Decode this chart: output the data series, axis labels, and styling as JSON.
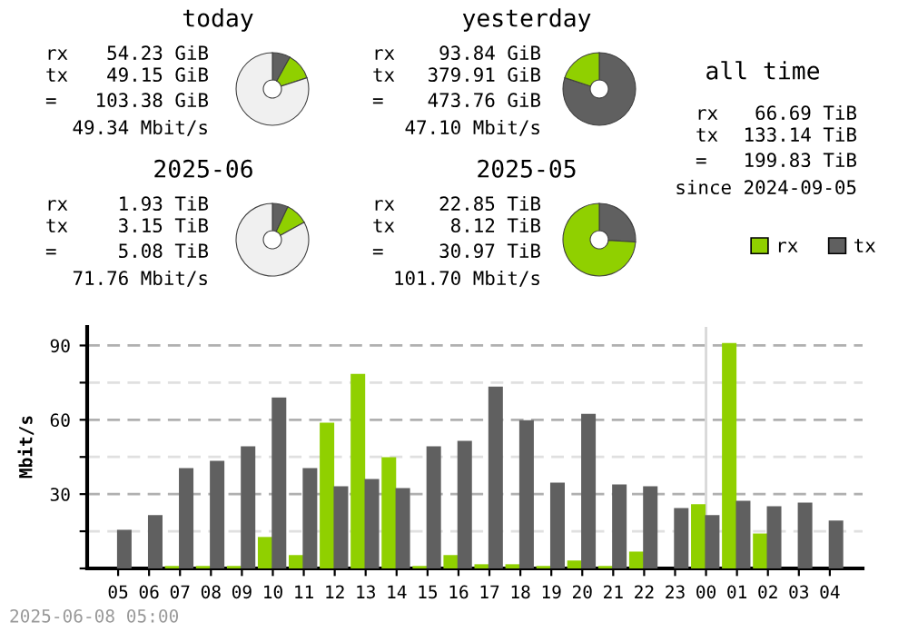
{
  "chart_data": [
    {
      "type": "donut",
      "title": "today",
      "categories": [
        null,
        null,
        null
      ],
      "values": [
        8,
        12,
        80
      ],
      "colors": [
        "#606060",
        "#90d000",
        "#f0f0f0"
      ],
      "annotations": [
        "rx 54.23 GiB",
        "tx 49.15 GiB",
        "= 103.38 GiB",
        "49.34 Mbit/s"
      ]
    },
    {
      "type": "donut",
      "title": "yesterday",
      "categories": [
        null,
        null
      ],
      "values": [
        80,
        20
      ],
      "colors": [
        "#606060",
        "#90d000"
      ],
      "annotations": [
        "rx 93.84 GiB",
        "tx 379.91 GiB",
        "= 473.76 GiB",
        "47.10 Mbit/s"
      ]
    },
    {
      "type": "other",
      "title": "all time",
      "annotations": [
        "rx 66.69 TiB",
        "tx 133.14 TiB",
        "= 199.83 TiB",
        "since 2024-09-05"
      ]
    },
    {
      "type": "donut",
      "title": "2025-06",
      "categories": [
        null,
        null,
        null
      ],
      "values": [
        7,
        10,
        83
      ],
      "colors": [
        "#606060",
        "#90d000",
        "#f0f0f0"
      ],
      "annotations": [
        "rx 1.93 TiB",
        "tx 3.15 TiB",
        "= 5.08 TiB",
        "71.76 Mbit/s"
      ]
    },
    {
      "type": "donut",
      "title": "2025-05",
      "categories": [
        null,
        null
      ],
      "values": [
        26,
        74
      ],
      "colors": [
        "#606060",
        "#90d000"
      ],
      "annotations": [
        "rx 22.85 TiB",
        "tx 8.12 TiB",
        "= 30.97 TiB",
        "101.70 Mbit/s"
      ]
    },
    {
      "type": "bar",
      "ylabel": "Mbit/s",
      "categories": [
        "05",
        "06",
        "07",
        "08",
        "09",
        "10",
        "11",
        "12",
        "13",
        "14",
        "15",
        "16",
        "17",
        "18",
        "19",
        "20",
        "21",
        "22",
        "23",
        "00",
        "01",
        "02",
        "03",
        "04"
      ],
      "series": [
        {
          "name": "rx",
          "color": "#90d000",
          "values": [
            0,
            0,
            1,
            1,
            1,
            12.7,
            5.4,
            58.8,
            78.5,
            44.9,
            1,
            5.4,
            1.7,
            1.7,
            1,
            3.2,
            1,
            6.8,
            0,
            25.9,
            91,
            14.1,
            0,
            0
          ]
        },
        {
          "name": "tx",
          "color": "#606060",
          "values": [
            15.6,
            21.5,
            40.5,
            43.4,
            49.3,
            69,
            40.5,
            33.2,
            36.1,
            32.4,
            49.3,
            51.5,
            73.4,
            59.8,
            34.6,
            62.4,
            33.9,
            33.2,
            24.4,
            21.5,
            27.3,
            25.1,
            26.6,
            19.3
          ]
        }
      ],
      "ylim": [
        0,
        97.5
      ],
      "yticks": [
        {
          "value": 0,
          "label": null
        },
        {
          "value": 15,
          "label": null
        },
        30,
        {
          "value": 45,
          "label": null
        },
        60,
        {
          "value": 75,
          "label": null
        },
        90
      ],
      "grid": "y",
      "legend": "top right",
      "ref_lines": [
        {
          "axis": "x",
          "value": "00",
          "color": "#d8d8d8"
        }
      ],
      "annotations": [
        "2025-06-08 05:00"
      ]
    }
  ]
}
